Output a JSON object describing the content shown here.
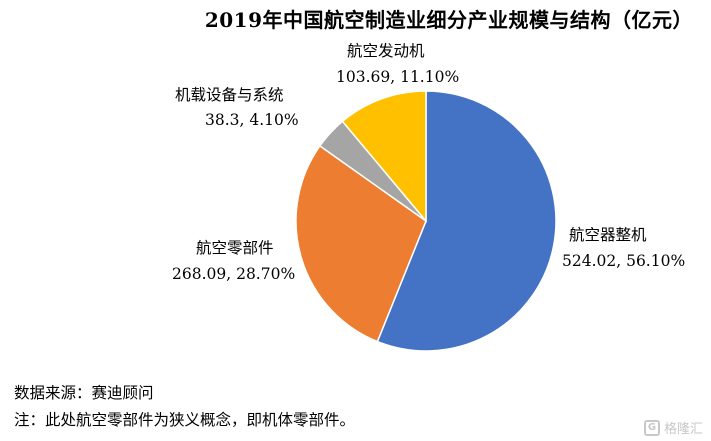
{
  "chart_data": {
    "type": "pie",
    "title": "2019年中国航空制造业细分产业规模与结构（亿元）",
    "slices": [
      {
        "name": "航空器整机",
        "value": 524.02,
        "percent": "56.10%",
        "value_label": "524.02, 56.10%",
        "color": "#4472C4"
      },
      {
        "name": "航空零部件",
        "value": 268.09,
        "percent": "28.70%",
        "value_label": "268.09, 28.70%",
        "color": "#ED7D31"
      },
      {
        "name": "机载设备与系统",
        "value": 38.3,
        "percent": "4.10%",
        "value_label": "38.3, 4.10%",
        "color": "#A5A5A5"
      },
      {
        "name": "航空发动机",
        "value": 103.69,
        "percent": "11.10%",
        "value_label": "103.69, 11.10%",
        "color": "#FFC000"
      }
    ]
  },
  "footer": {
    "source": "数据来源：赛迪顾问",
    "note": "注：此处航空零部件为狭义概念，即机体零部件。"
  },
  "watermark": {
    "logo": "G",
    "text": "格隆汇"
  }
}
